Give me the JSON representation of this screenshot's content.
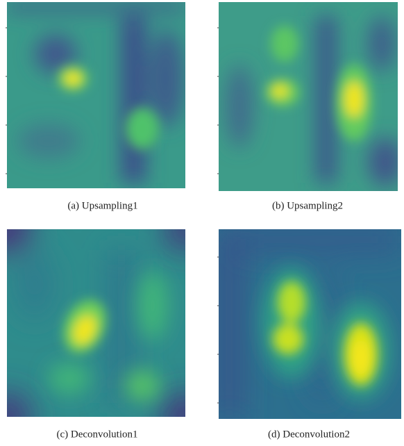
{
  "figure": {
    "panels": [
      {
        "caption": "(a) Upsampling1"
      },
      {
        "caption": "(b) Upsampling2"
      },
      {
        "caption": "(c) Deconvolution1"
      },
      {
        "caption": "(d) Deconvolution2"
      }
    ]
  }
}
